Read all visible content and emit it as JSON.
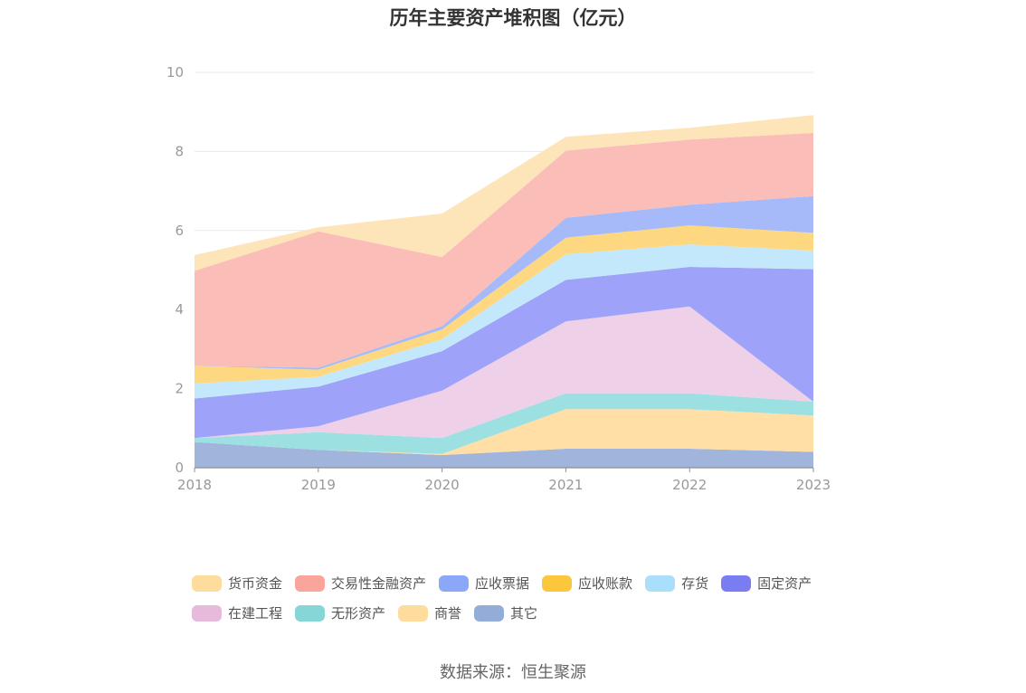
{
  "chart_data": {
    "type": "area",
    "stacked": true,
    "title": "历年主要资产堆积图（亿元）",
    "categories": [
      "2018",
      "2019",
      "2020",
      "2021",
      "2022",
      "2023"
    ],
    "ylim": [
      0,
      10
    ],
    "yticks": [
      0,
      2,
      4,
      6,
      8,
      10
    ],
    "grid": true,
    "legend_position": "bottom",
    "series": [
      {
        "name": "其它",
        "color": "#a0b4dc",
        "values": [
          0.65,
          0.45,
          0.32,
          0.48,
          0.48,
          0.4
        ]
      },
      {
        "name": "商誉",
        "color": "#ffdfa5",
        "values": [
          0.0,
          0.0,
          0.03,
          1.0,
          1.0,
          0.92
        ]
      },
      {
        "name": "无形资产",
        "color": "#9de0e2",
        "values": [
          0.1,
          0.45,
          0.4,
          0.4,
          0.4,
          0.35
        ]
      },
      {
        "name": "在建工程",
        "color": "#eed0e8",
        "values": [
          0.0,
          0.15,
          1.2,
          1.82,
          2.2,
          0.0
        ]
      },
      {
        "name": "固定资产",
        "color": "#9ea2f8",
        "values": [
          1.0,
          1.0,
          1.0,
          1.05,
          1.0,
          3.35
        ]
      },
      {
        "name": "存货",
        "color": "#c4e8fb",
        "values": [
          0.38,
          0.25,
          0.3,
          0.65,
          0.57,
          0.47
        ]
      },
      {
        "name": "应收账款",
        "color": "#fed880",
        "values": [
          0.45,
          0.18,
          0.25,
          0.42,
          0.48,
          0.45
        ]
      },
      {
        "name": "应收票据",
        "color": "#a6baf9",
        "values": [
          0.0,
          0.05,
          0.08,
          0.5,
          0.52,
          0.93
        ]
      },
      {
        "name": "交易性金融资产",
        "color": "#fbbdb8",
        "values": [
          2.4,
          3.45,
          1.75,
          1.7,
          1.65,
          1.6
        ]
      },
      {
        "name": "货币资金",
        "color": "#fde5b9",
        "values": [
          0.4,
          0.1,
          1.1,
          0.35,
          0.3,
          0.45
        ]
      }
    ],
    "legend_order": [
      "货币资金",
      "交易性金融资产",
      "应收票据",
      "应收账款",
      "存货",
      "固定资产",
      "在建工程",
      "无形资产",
      "商誉",
      "其它"
    ],
    "legend_colors": {
      "货币资金": "#fddc9d",
      "交易性金融资产": "#f9a59b",
      "应收票据": "#8aa8f7",
      "应收账款": "#fdc73d",
      "存货": "#a9dffb",
      "固定资产": "#7a7df2",
      "在建工程": "#e7b9da",
      "无形资产": "#86d6d6",
      "商誉": "#fddc9d",
      "其它": "#93acd8"
    }
  },
  "source_note": "数据来源：恒生聚源"
}
